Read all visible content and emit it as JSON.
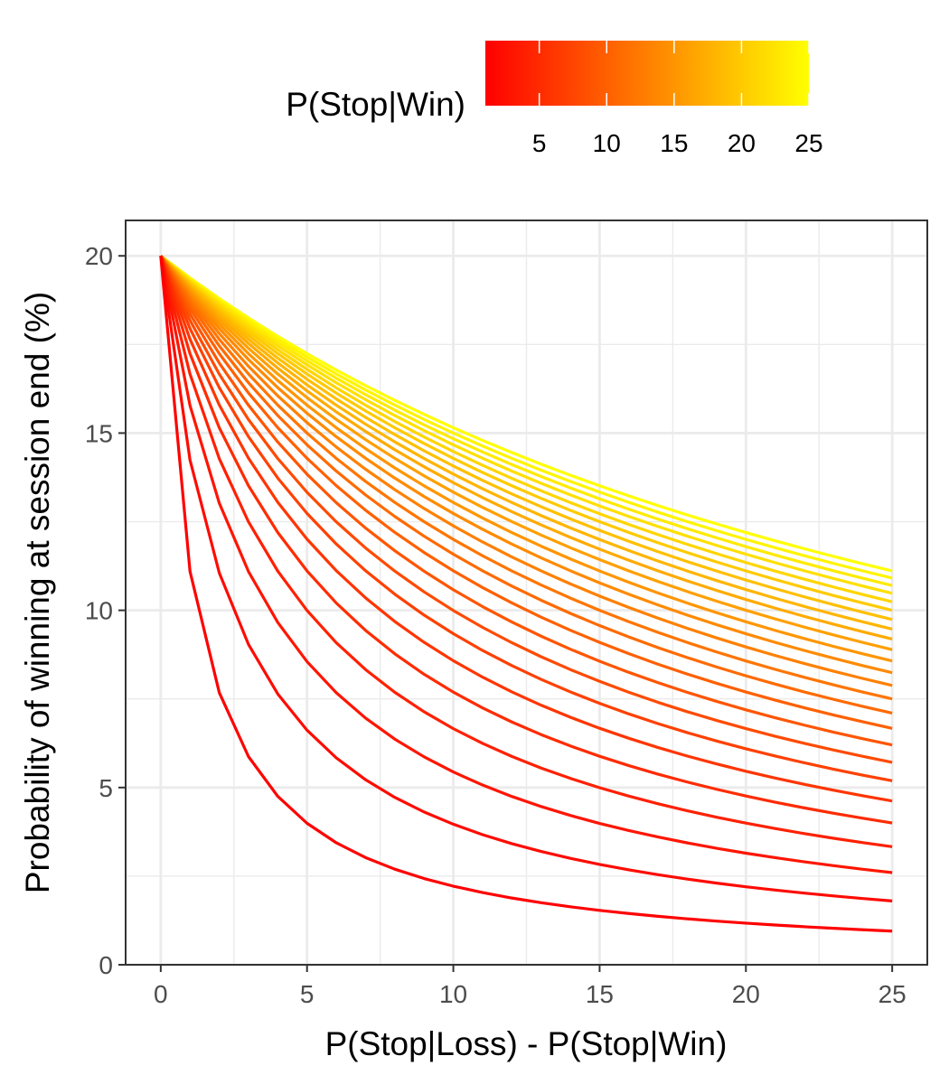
{
  "chart_data": {
    "type": "line",
    "title": "",
    "xlabel": "P(Stop|Loss) - P(Stop|Win)",
    "ylabel": "Probability of winning at session end (%)",
    "xlim": [
      -1.2,
      26.2
    ],
    "ylim": [
      0,
      21
    ],
    "x_ticks": [
      0,
      5,
      10,
      15,
      20,
      25
    ],
    "y_ticks": [
      0,
      5,
      10,
      15,
      20
    ],
    "grid": true,
    "x_values": [
      0,
      1,
      2,
      3,
      4,
      5,
      6,
      7,
      8,
      9,
      10,
      11,
      12,
      13,
      14,
      15,
      16,
      17,
      18,
      19,
      20,
      21,
      22,
      23,
      24,
      25
    ],
    "y_at_zero": 20,
    "series_parameter": [
      1,
      2,
      3,
      4,
      5,
      6,
      7,
      8,
      9,
      10,
      11,
      12,
      13,
      14,
      15,
      16,
      17,
      18,
      19,
      20,
      21,
      22,
      23,
      24,
      25
    ],
    "series_end_values": [
      0.95,
      1.8,
      2.6,
      3.33,
      4.0,
      4.62,
      5.19,
      5.71,
      6.2,
      6.67,
      7.1,
      7.5,
      7.88,
      8.24,
      8.57,
      8.89,
      9.19,
      9.47,
      9.74,
      10.0,
      10.24,
      10.48,
      10.7,
      10.91,
      11.11
    ],
    "legend": {
      "title": "P(Stop|Win)",
      "position": "top",
      "type": "colorbar",
      "range": [
        1,
        25
      ],
      "breaks": [
        5,
        10,
        15,
        20,
        25
      ],
      "low_color": "#FF0000",
      "high_color": "#FFFF00"
    },
    "colors": {
      "low": "#FF0000",
      "high": "#FFFF00",
      "grid": "#EBEBEB",
      "panel_border": "#333333"
    }
  }
}
